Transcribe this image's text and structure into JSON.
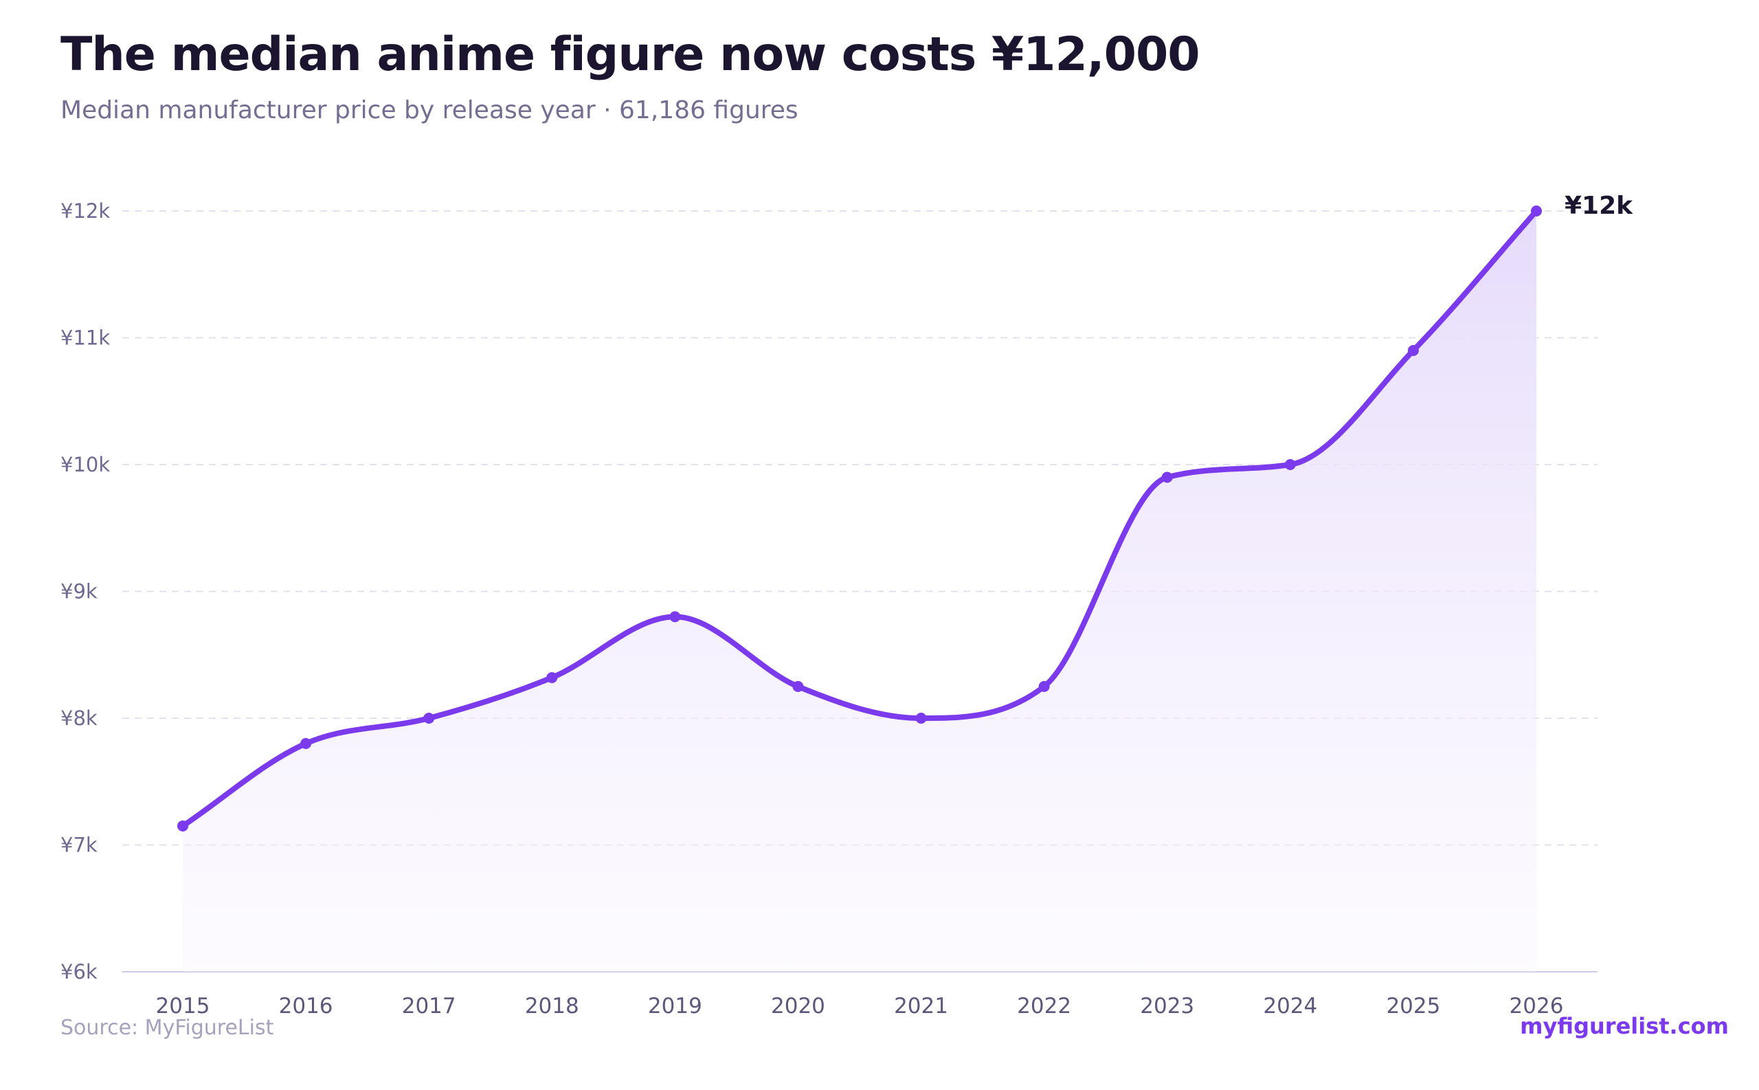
{
  "header": {
    "title": "The median anime figure now costs ¥12,000",
    "subtitle": "Median manufacturer price by release year · 61,186 figures"
  },
  "footer": {
    "source": "Source: MyFigureList",
    "brand": "myfigurelist.com"
  },
  "colors": {
    "line": "#7c3aed",
    "area_top": "#e6dbfb",
    "grid": "#e4e0ee",
    "axis": "#cfc8e6"
  },
  "chart_data": {
    "type": "line",
    "title": "The median anime figure now costs ¥12,000",
    "subtitle": "Median manufacturer price by release year · 61,186 figures",
    "xlabel": "",
    "ylabel": "",
    "x": [
      2015,
      2016,
      2017,
      2018,
      2019,
      2020,
      2021,
      2022,
      2023,
      2024,
      2025,
      2026
    ],
    "series": [
      {
        "values": [
          7150,
          7800,
          8000,
          8320,
          8800,
          8250,
          8000,
          8250,
          9900,
          10000,
          10900,
          12000
        ]
      }
    ],
    "ylim": [
      6000,
      12000
    ],
    "yticks": [
      6000,
      7000,
      8000,
      9000,
      10000,
      11000,
      12000
    ],
    "ytick_labels": [
      "¥6k",
      "¥7k",
      "¥8k",
      "¥9k",
      "¥10k",
      "¥11k",
      "¥12k"
    ],
    "xtick_labels": [
      "2015",
      "2016",
      "2017",
      "2018",
      "2019",
      "2020",
      "2021",
      "2022",
      "2023",
      "2024",
      "2025",
      "2026"
    ],
    "end_label": "¥12k",
    "grid": "horizontal dashed",
    "area_fill": true
  }
}
